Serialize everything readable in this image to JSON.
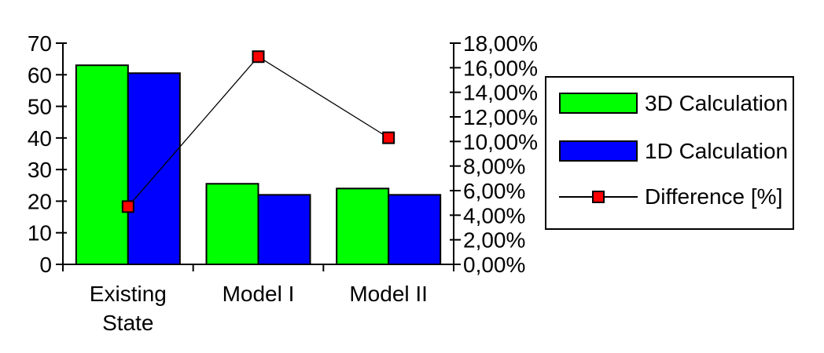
{
  "chart_data": {
    "type": "bar",
    "subtype": "combo-bar-line-dual-axis",
    "title": "",
    "categories": [
      "Existing State",
      "Model I",
      "Model II"
    ],
    "category_label_lines": [
      [
        "Existing",
        "State"
      ],
      [
        "Model I"
      ],
      [
        "Model II"
      ]
    ],
    "series": [
      {
        "name": "3D Calculation",
        "chart": "bar",
        "axis": "left",
        "color": "#00ff00",
        "values": [
          63,
          25.5,
          24
        ]
      },
      {
        "name": "1D Calculation",
        "chart": "bar",
        "axis": "left",
        "color": "#0000ff",
        "values": [
          60.5,
          22,
          22
        ]
      },
      {
        "name": "Difference [%]",
        "chart": "line",
        "axis": "right",
        "color": "#ff0000",
        "line_color": "#000000",
        "values": [
          4.7,
          16.9,
          10.3
        ]
      }
    ],
    "left_axis": {
      "min": 0,
      "max": 70,
      "step": 10,
      "tick_labels": [
        "0",
        "10",
        "20",
        "30",
        "40",
        "50",
        "60",
        "70"
      ]
    },
    "right_axis": {
      "min": 0,
      "max": 18,
      "step": 2,
      "tick_labels": [
        "0,00%",
        "2,00%",
        "4,00%",
        "6,00%",
        "8,00%",
        "10,00%",
        "12,00%",
        "14,00%",
        "16,00%",
        "18,00%"
      ]
    },
    "grid": "off",
    "legend": {
      "position": "right",
      "bordered": true
    }
  },
  "colors": {
    "background": "#ffffff",
    "axis": "#000000",
    "text": "#000000",
    "bar_3d": "#00ff00",
    "bar_1d": "#0000ff",
    "difference_marker": "#ff0000"
  }
}
